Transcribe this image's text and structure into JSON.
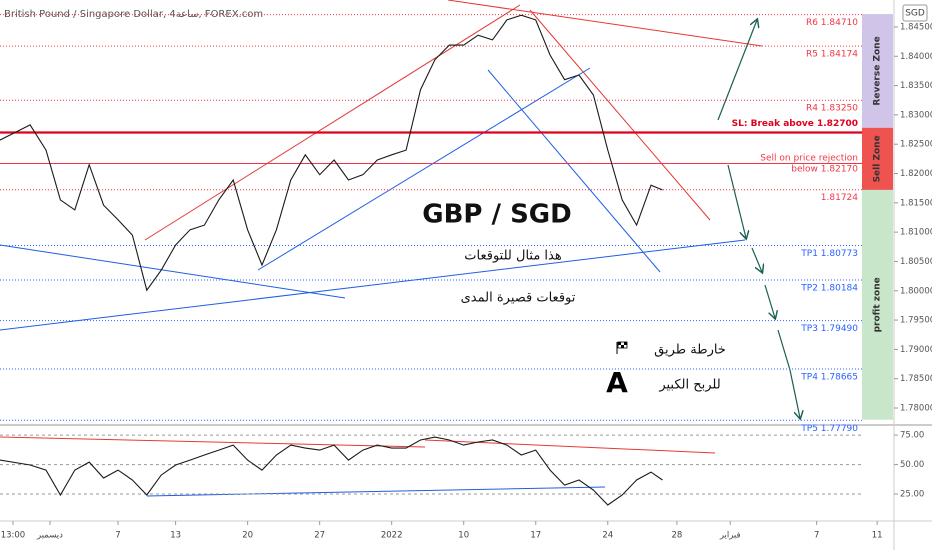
{
  "header": {
    "title": "British Pound / Singapore Dollar, 4ساعة, FOREX.com",
    "currency": "SGD"
  },
  "chart_data": [
    {
      "type": "line",
      "color": "#1a1a1a",
      "texts": {
        "pair": "GBP / SGD",
        "note1": "هذا مثال للتوقعات",
        "note2": "توقعات قصيرة المدى",
        "roadmap": "خارطة طريق",
        "profit": "للربح الكبير",
        "logo": "A"
      },
      "x": [
        -8.2,
        -6.1,
        -5,
        -4,
        -3,
        -2,
        -1,
        0,
        1,
        2,
        3,
        4,
        5,
        6,
        7,
        8,
        9,
        10,
        11,
        12,
        13,
        14,
        15,
        16,
        17,
        18,
        19,
        20,
        21,
        22,
        23,
        24,
        25,
        26,
        27,
        28,
        29,
        30,
        31,
        32,
        33,
        34,
        35,
        36,
        37,
        37.8
      ],
      "values": [
        1.8257,
        1.8283,
        1.824,
        1.8155,
        1.8138,
        1.8215,
        1.8146,
        1.8121,
        1.8095,
        1.8001,
        1.8035,
        1.8078,
        1.8104,
        1.8112,
        1.8155,
        1.8189,
        1.8104,
        1.8044,
        1.8104,
        1.8189,
        1.8232,
        1.8198,
        1.8223,
        1.8189,
        1.8198,
        1.8223,
        1.8232,
        1.824,
        1.8343,
        1.8394,
        1.8419,
        1.8419,
        1.8436,
        1.8428,
        1.8462,
        1.847,
        1.8462,
        1.8402,
        1.836,
        1.8368,
        1.8334,
        1.824,
        1.8155,
        1.8112,
        1.818,
        1.8172
      ],
      "xlim": [
        -8.19,
        53.8
      ],
      "ylim": [
        1.7771,
        1.8496
      ],
      "yticks": [
        {
          "value": 1.78,
          "label": "1.78000"
        },
        {
          "value": 1.785,
          "label": "1.78500"
        },
        {
          "value": 1.79,
          "label": "1.79000"
        },
        {
          "value": 1.795,
          "label": "1.79500"
        },
        {
          "value": 1.8,
          "label": "1.80000"
        },
        {
          "value": 1.805,
          "label": "1.80500"
        },
        {
          "value": 1.81,
          "label": "1.81000"
        },
        {
          "value": 1.815,
          "label": "1.81500"
        },
        {
          "value": 1.82,
          "label": "1.82000"
        },
        {
          "value": 1.825,
          "label": "1.82500"
        },
        {
          "value": 1.83,
          "label": "1.83000"
        },
        {
          "value": 1.835,
          "label": "1.83500"
        },
        {
          "value": 1.84,
          "label": "1.84000"
        },
        {
          "value": 1.845,
          "label": "1.84500"
        }
      ],
      "levels": [
        {
          "label": "R6 1.84710",
          "value": 1.8471,
          "color": "#f23645",
          "style": "dotted"
        },
        {
          "label": "R5 1.84174",
          "value": 1.84174,
          "color": "#f23645",
          "style": "dotted"
        },
        {
          "label": "R4 1.83250",
          "value": 1.8325,
          "color": "#f23645",
          "style": "dotted"
        },
        {
          "label": "SL: Break above 1.82700",
          "value": 1.827,
          "color": "#e0001b",
          "style": "thick"
        },
        {
          "label": [
            "Sell on price rejection",
            "below 1.82170"
          ],
          "value": 1.8217,
          "color": "#f23645",
          "style": "solid"
        },
        {
          "label": "1.81724",
          "value": 1.81724,
          "color": "#f23645",
          "style": "dotted"
        },
        {
          "label": "TP1 1.80773",
          "value": 1.80773,
          "color": "#2962ff",
          "style": "dotted"
        },
        {
          "label": "TP2 1.80184",
          "value": 1.80184,
          "color": "#2962ff",
          "style": "dotted"
        },
        {
          "label": "TP3 1.79490",
          "value": 1.7949,
          "color": "#2962ff",
          "style": "dotted"
        },
        {
          "label": "TP4 1.78665",
          "value": 1.78665,
          "color": "#2962ff",
          "style": "dotted"
        },
        {
          "label": "TP5 1.77790",
          "value": 1.7779,
          "color": "#2962ff",
          "style": "dotted"
        }
      ],
      "zones": [
        {
          "label": "Reverse Zone",
          "from": 1.8278,
          "to": 1.8472,
          "color": "#d1c4e9"
        },
        {
          "label": "Sell Zone",
          "from": 1.8172,
          "to": 1.8278,
          "color": "#ef5350"
        },
        {
          "label": "profit zone",
          "from": 1.778,
          "to": 1.8172,
          "color": "#c8e6c9"
        }
      ]
    },
    {
      "type": "line",
      "color": "#1a1a1a",
      "x": [
        -8.2,
        -6.1,
        -5,
        -4,
        -3,
        -2,
        -1,
        0,
        1,
        2,
        3,
        4,
        5,
        6,
        7,
        8,
        9,
        10,
        11,
        12,
        13,
        14,
        15,
        16,
        17,
        18,
        19,
        20,
        21,
        22,
        23,
        24,
        25,
        26,
        27,
        28,
        29,
        30,
        31,
        32,
        33,
        34,
        35,
        36,
        37,
        37.8
      ],
      "values": [
        53.8,
        49.6,
        45.3,
        24.2,
        45.3,
        52.1,
        38.6,
        45.3,
        36.9,
        24.2,
        41.1,
        49.6,
        53.8,
        58.1,
        62.3,
        66.5,
        53.8,
        45.3,
        58.1,
        66.5,
        64.0,
        62.3,
        66.5,
        53.8,
        62.3,
        66.5,
        64.0,
        64.0,
        70.8,
        73.3,
        70.8,
        66.5,
        69.1,
        70.8,
        66.5,
        58.1,
        62.3,
        45.3,
        32.6,
        36.9,
        28.4,
        15.7,
        24.2,
        36.9,
        43.6,
        36.9
      ],
      "xlim": [
        -8.19,
        53.8
      ],
      "ylim": [
        3,
        81
      ],
      "yticks": [
        {
          "value": 75,
          "label": "75.00"
        },
        {
          "value": 50,
          "label": "50.00"
        },
        {
          "value": 25,
          "label": "25.00"
        }
      ],
      "grid": true,
      "xticks": [
        {
          "value": -7.29,
          "label": "13:00"
        },
        {
          "value": -4.72,
          "label": "ديسمبر"
        },
        {
          "value": 0,
          "label": "7"
        },
        {
          "value": 4,
          "label": "13"
        },
        {
          "value": 9,
          "label": "20"
        },
        {
          "value": 14,
          "label": "27"
        },
        {
          "value": 19,
          "label": "2022"
        },
        {
          "value": 24,
          "label": "10"
        },
        {
          "value": 29,
          "label": "17"
        },
        {
          "value": 34,
          "label": "24"
        },
        {
          "value": 38.8,
          "label": "28"
        },
        {
          "value": 42.5,
          "label": "فبراير"
        },
        {
          "value": 48.5,
          "label": "7"
        },
        {
          "value": 52.7,
          "label": "11"
        }
      ]
    }
  ]
}
